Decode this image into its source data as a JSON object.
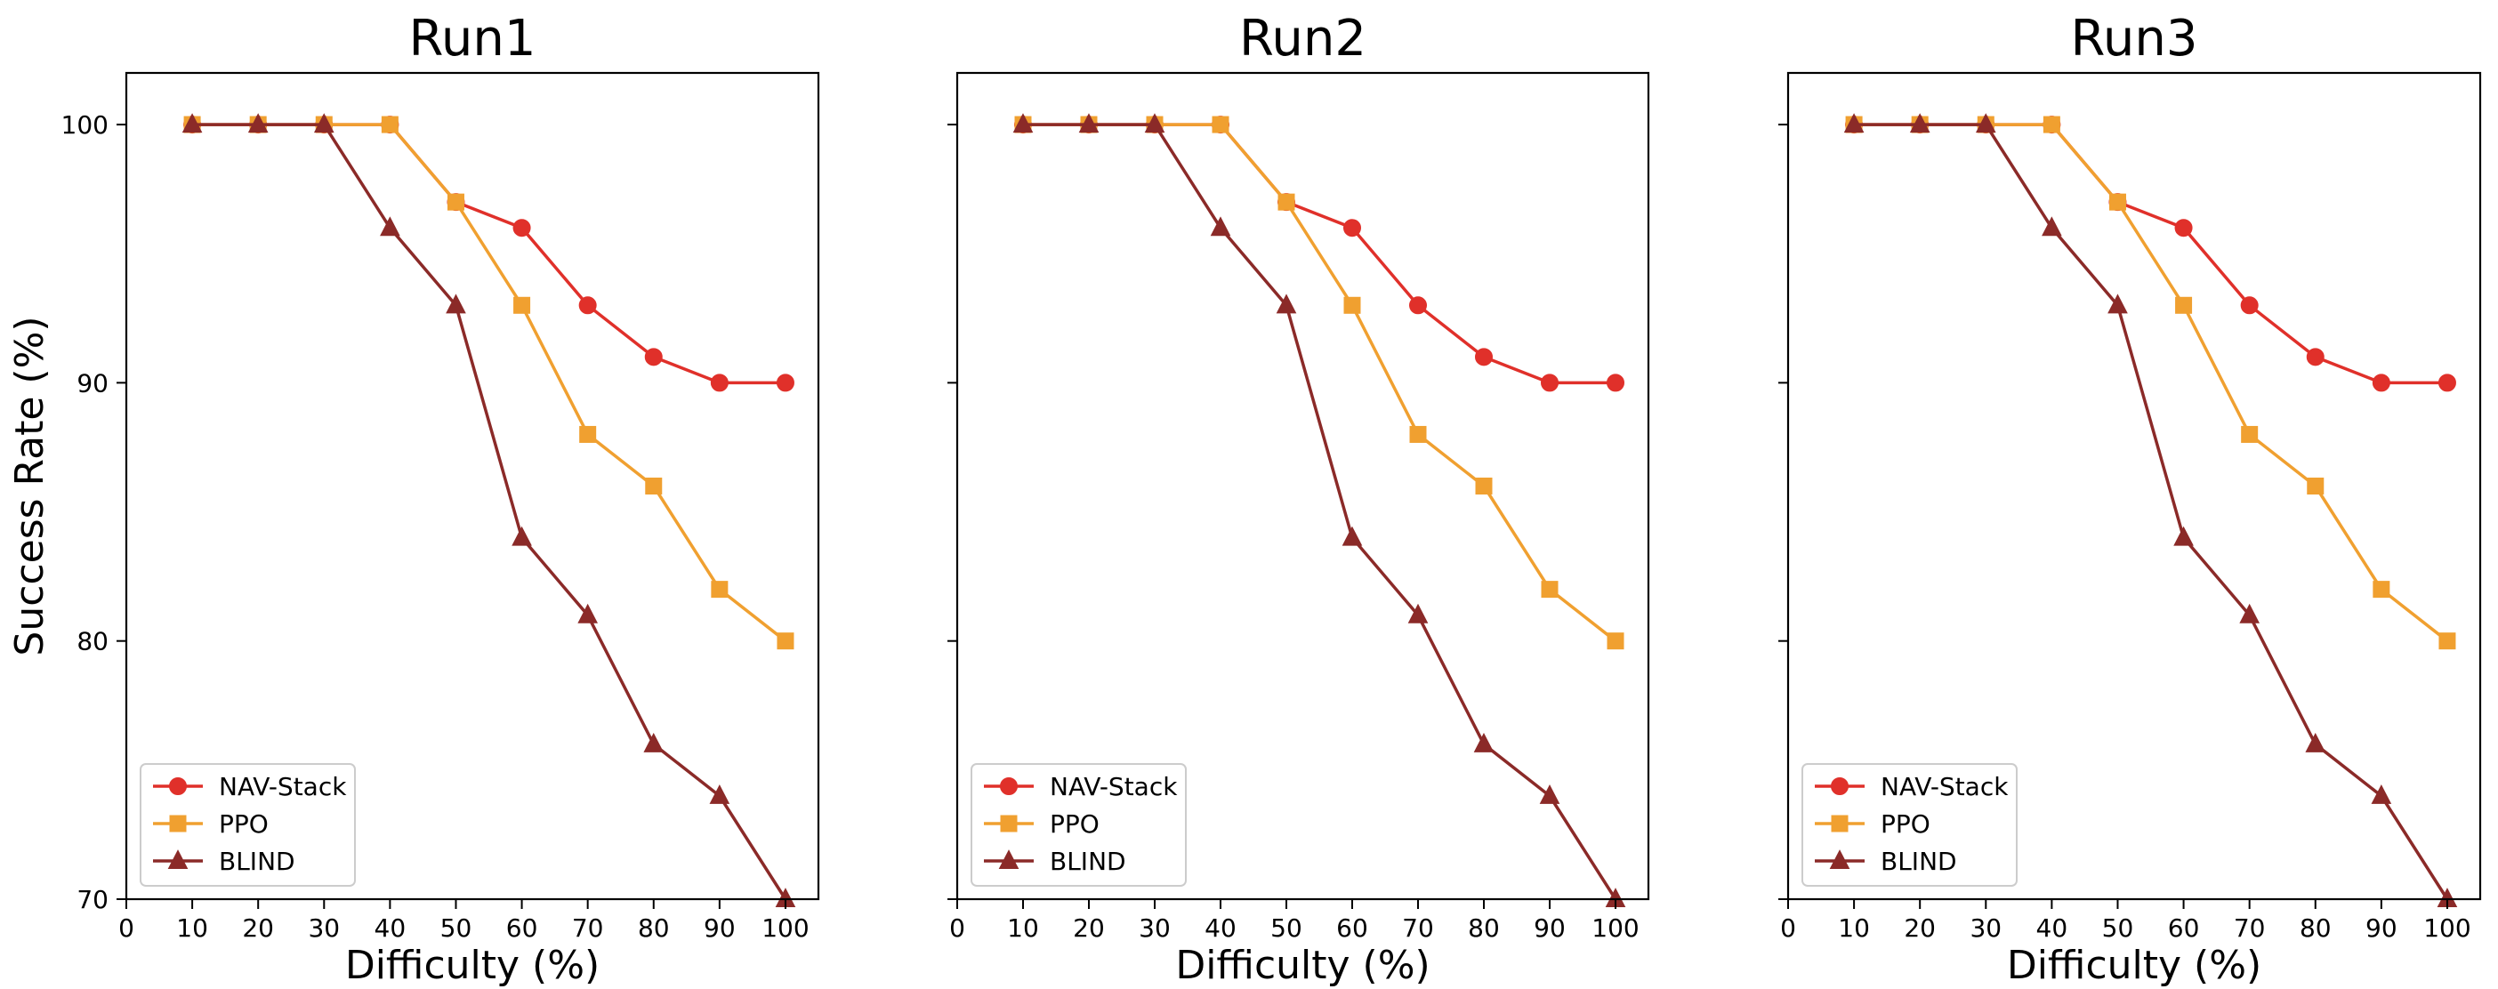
{
  "chart_data": [
    {
      "type": "line",
      "title": "Run1",
      "xlabel": "Difficulty (%)",
      "ylabel": "Success Rate (%)",
      "xlim": [
        0,
        105
      ],
      "ylim": [
        70,
        102
      ],
      "xticks": [
        "0",
        "10",
        "20",
        "30",
        "40",
        "50",
        "60",
        "70",
        "80",
        "90",
        "100"
      ],
      "yticks": [
        "70",
        "80",
        "90",
        "100"
      ],
      "x": [
        10,
        20,
        30,
        40,
        50,
        60,
        70,
        80,
        90,
        100
      ],
      "series": [
        {
          "name": "NAV-Stack",
          "marker": "circle",
          "color": "#e0302a",
          "values": [
            100,
            100,
            100,
            100,
            97,
            96,
            93,
            91,
            90,
            90
          ]
        },
        {
          "name": "PPO",
          "marker": "square",
          "color": "#f0a030",
          "values": [
            100,
            100,
            100,
            100,
            97,
            93,
            88,
            86,
            82,
            80
          ]
        },
        {
          "name": "BLIND",
          "marker": "triangle",
          "color": "#8b2a28",
          "values": [
            100,
            100,
            100,
            96,
            93,
            84,
            81,
            76,
            74,
            70
          ]
        }
      ],
      "legend": "lower-left",
      "grid": false
    },
    {
      "type": "line",
      "title": "Run2",
      "xlabel": "Difficulty (%)",
      "ylabel": "",
      "xlim": [
        0,
        105
      ],
      "ylim": [
        70,
        102
      ],
      "xticks": [
        "0",
        "10",
        "20",
        "30",
        "40",
        "50",
        "60",
        "70",
        "80",
        "90",
        "100"
      ],
      "yticks": [
        "",
        "",
        "",
        ""
      ],
      "x": [
        10,
        20,
        30,
        40,
        50,
        60,
        70,
        80,
        90,
        100
      ],
      "series": [
        {
          "name": "NAV-Stack",
          "marker": "circle",
          "color": "#e0302a",
          "values": [
            100,
            100,
            100,
            100,
            97,
            96,
            93,
            91,
            90,
            90
          ]
        },
        {
          "name": "PPO",
          "marker": "square",
          "color": "#f0a030",
          "values": [
            100,
            100,
            100,
            100,
            97,
            93,
            88,
            86,
            82,
            80
          ]
        },
        {
          "name": "BLIND",
          "marker": "triangle",
          "color": "#8b2a28",
          "values": [
            100,
            100,
            100,
            96,
            93,
            84,
            81,
            76,
            74,
            70
          ]
        }
      ],
      "legend": "lower-left",
      "grid": false
    },
    {
      "type": "line",
      "title": "Run3",
      "xlabel": "Difficulty (%)",
      "ylabel": "",
      "xlim": [
        0,
        105
      ],
      "ylim": [
        70,
        102
      ],
      "xticks": [
        "0",
        "10",
        "20",
        "30",
        "40",
        "50",
        "60",
        "70",
        "80",
        "90",
        "100"
      ],
      "yticks": [
        "",
        "",
        "",
        ""
      ],
      "x": [
        10,
        20,
        30,
        40,
        50,
        60,
        70,
        80,
        90,
        100
      ],
      "series": [
        {
          "name": "NAV-Stack",
          "marker": "circle",
          "color": "#e0302a",
          "values": [
            100,
            100,
            100,
            100,
            97,
            96,
            93,
            91,
            90,
            90
          ]
        },
        {
          "name": "PPO",
          "marker": "square",
          "color": "#f0a030",
          "values": [
            100,
            100,
            100,
            100,
            97,
            93,
            88,
            86,
            82,
            80
          ]
        },
        {
          "name": "BLIND",
          "marker": "triangle",
          "color": "#8b2a28",
          "values": [
            100,
            100,
            100,
            96,
            93,
            84,
            81,
            76,
            74,
            70
          ]
        }
      ],
      "legend": "lower-left",
      "grid": false
    }
  ]
}
